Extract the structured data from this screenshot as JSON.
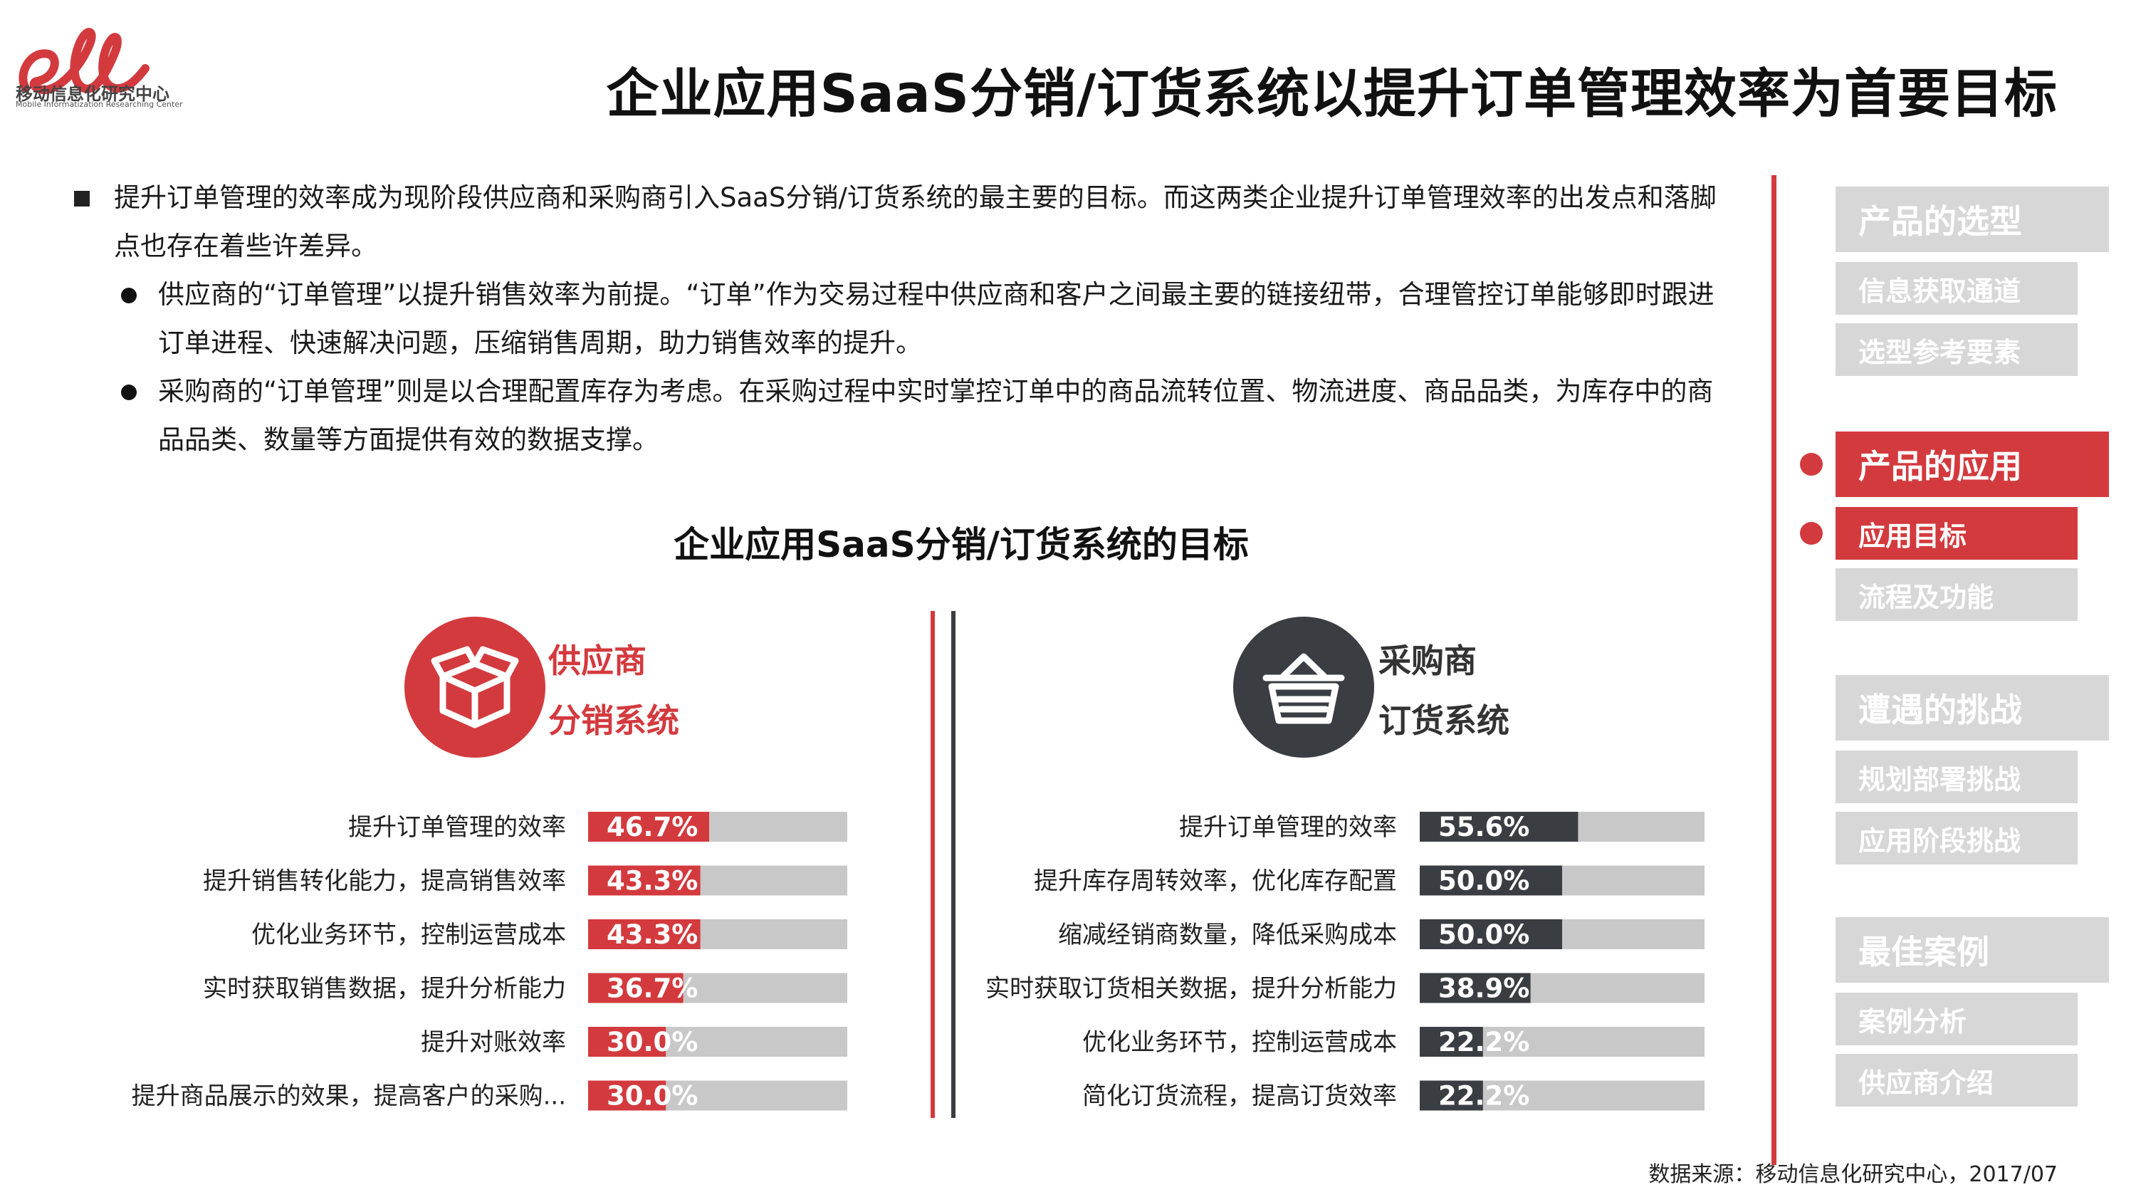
{
  "logo": {
    "mark": "el",
    "name_cn": "移动信息化研究中心",
    "name_en": "Mobile Informatization Researching Center",
    "color": "#d33a3e"
  },
  "title": "企业应用SaaS分销/订货系统以提升订单管理效率为首要目标",
  "intro": {
    "main": "提升订单管理的效率成为现阶段供应商和采购商引入SaaS分销/订货系统的最主要的目标。而这两类企业提升订单管理效率的出发点和落脚点也存在着些许差异。",
    "sub1": "供应商的“订单管理”以提升销售效率为前提。“订单”作为交易过程中供应商和客户之间最主要的链接纽带，合理管控订单能够即时跟进订单进程、快速解决问题，压缩销售周期，助力销售效率的提升。",
    "sub2": "采购商的“订单管理”则是以合理配置库存为考虑。在采购过程中实时掌控订单中的商品流转位置、物流进度、商品品类，为库存中的商品品类、数量等方面提供有效的数据支撑。"
  },
  "chart_title": "企业应用SaaS分销/订货系统的目标",
  "supplier": {
    "line1": "供应商",
    "line2": "分销系统",
    "icon": "open-box-icon",
    "color": "#d33a3e"
  },
  "purchaser": {
    "line1": "采购商",
    "line2": "订货系统",
    "icon": "shopping-basket-icon",
    "color": "#3a3d42"
  },
  "chart_data": [
    {
      "type": "bar",
      "orientation": "horizontal",
      "group": "供应商 分销系统",
      "categories": [
        "提升订单管理的效率",
        "提升销售转化能力，提高销售效率",
        "优化业务环节，控制运营成本",
        "实时获取销售数据，提升分析能力",
        "提升对账效率",
        "提升商品展示的效果，提高客户的采购..."
      ],
      "values": [
        46.7,
        43.3,
        43.3,
        36.7,
        30.0,
        30.0
      ],
      "labels": [
        "46.7%",
        "43.3%",
        "43.3%",
        "36.7%",
        "30.0%",
        "30.0%"
      ],
      "xlim": [
        0,
        100
      ],
      "bar_color": "#d33a3e",
      "track_color": "#c8c8c8"
    },
    {
      "type": "bar",
      "orientation": "horizontal",
      "group": "采购商 订货系统",
      "categories": [
        "提升订单管理的效率",
        "提升库存周转效率，优化库存配置",
        "缩减经销商数量，降低采购成本",
        "实时获取订货相关数据，提升分析能力",
        "优化业务环节，控制运营成本",
        "简化订货流程，提高订货效率"
      ],
      "values": [
        55.6,
        50.0,
        50.0,
        38.9,
        22.2,
        22.2
      ],
      "labels": [
        "55.6%",
        "50.0%",
        "50.0%",
        "38.9%",
        "22.2%",
        "22.2%"
      ],
      "xlim": [
        0,
        100
      ],
      "bar_color": "#3a3d42",
      "track_color": "#c8c8c8"
    }
  ],
  "sidebar": {
    "sections": [
      {
        "label": "产品的选型",
        "active": false,
        "items": [
          {
            "label": "信息获取通道",
            "active": false
          },
          {
            "label": "选型参考要素",
            "active": false
          }
        ]
      },
      {
        "label": "产品的应用",
        "active": true,
        "items": [
          {
            "label": "应用目标",
            "active": true
          },
          {
            "label": "流程及功能",
            "active": false
          }
        ]
      },
      {
        "label": "遭遇的挑战",
        "active": false,
        "items": [
          {
            "label": "规划部署挑战",
            "active": false
          },
          {
            "label": "应用阶段挑战",
            "active": false
          }
        ]
      },
      {
        "label": "最佳案例",
        "active": false,
        "items": [
          {
            "label": "案例分析",
            "active": false
          },
          {
            "label": "供应商介绍",
            "active": false
          }
        ]
      }
    ]
  },
  "source": "数据来源：移动信息化研究中心，2017/07"
}
